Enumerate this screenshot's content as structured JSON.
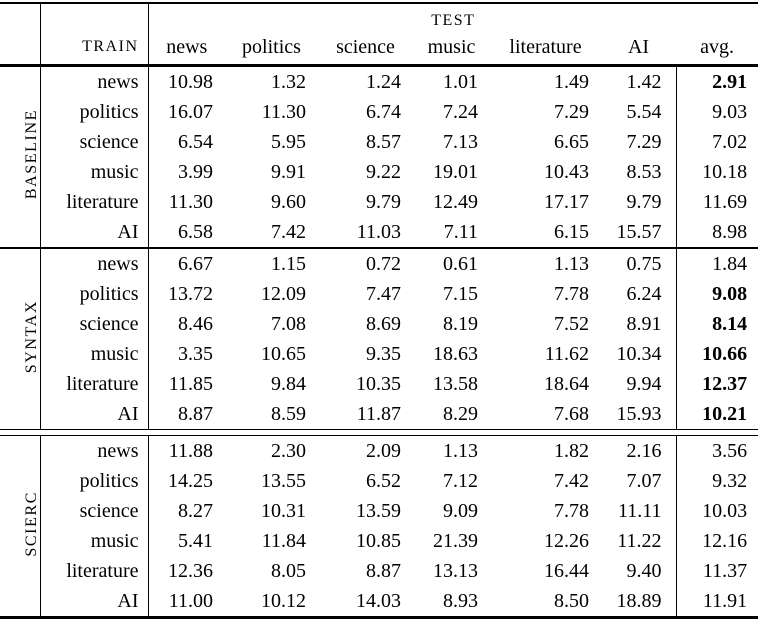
{
  "colors": {
    "text": "#000000",
    "background": "#ffffff",
    "rule": "#000000"
  },
  "table": {
    "test_label": "TEST",
    "train_label": "TRAIN",
    "columns": [
      "news",
      "politics",
      "science",
      "music",
      "literature",
      "AI",
      "avg."
    ],
    "sections": [
      {
        "name": "BASELINE",
        "rows": [
          {
            "train": "news",
            "values": [
              "10.98",
              "1.32",
              "1.24",
              "1.01",
              "1.49",
              "1.42"
            ],
            "avg": "2.91",
            "avg_bold": true
          },
          {
            "train": "politics",
            "values": [
              "16.07",
              "11.30",
              "6.74",
              "7.24",
              "7.29",
              "5.54"
            ],
            "avg": "9.03",
            "avg_bold": false
          },
          {
            "train": "science",
            "values": [
              "6.54",
              "5.95",
              "8.57",
              "7.13",
              "6.65",
              "7.29"
            ],
            "avg": "7.02",
            "avg_bold": false
          },
          {
            "train": "music",
            "values": [
              "3.99",
              "9.91",
              "9.22",
              "19.01",
              "10.43",
              "8.53"
            ],
            "avg": "10.18",
            "avg_bold": false
          },
          {
            "train": "literature",
            "values": [
              "11.30",
              "9.60",
              "9.79",
              "12.49",
              "17.17",
              "9.79"
            ],
            "avg": "11.69",
            "avg_bold": false
          },
          {
            "train": "AI",
            "values": [
              "6.58",
              "7.42",
              "11.03",
              "7.11",
              "6.15",
              "15.57"
            ],
            "avg": "8.98",
            "avg_bold": false
          }
        ]
      },
      {
        "name": "SYNTAX",
        "rows": [
          {
            "train": "news",
            "values": [
              "6.67",
              "1.15",
              "0.72",
              "0.61",
              "1.13",
              "0.75"
            ],
            "avg": "1.84",
            "avg_bold": false
          },
          {
            "train": "politics",
            "values": [
              "13.72",
              "12.09",
              "7.47",
              "7.15",
              "7.78",
              "6.24"
            ],
            "avg": "9.08",
            "avg_bold": true
          },
          {
            "train": "science",
            "values": [
              "8.46",
              "7.08",
              "8.69",
              "8.19",
              "7.52",
              "8.91"
            ],
            "avg": "8.14",
            "avg_bold": true
          },
          {
            "train": "music",
            "values": [
              "3.35",
              "10.65",
              "9.35",
              "18.63",
              "11.62",
              "10.34"
            ],
            "avg": "10.66",
            "avg_bold": true
          },
          {
            "train": "literature",
            "values": [
              "11.85",
              "9.84",
              "10.35",
              "13.58",
              "18.64",
              "9.94"
            ],
            "avg": "12.37",
            "avg_bold": true
          },
          {
            "train": "AI",
            "values": [
              "8.87",
              "8.59",
              "11.87",
              "8.29",
              "7.68",
              "15.93"
            ],
            "avg": "10.21",
            "avg_bold": true
          }
        ]
      },
      {
        "name": "SCIERC",
        "rows": [
          {
            "train": "news",
            "values": [
              "11.88",
              "2.30",
              "2.09",
              "1.13",
              "1.82",
              "2.16"
            ],
            "avg": "3.56",
            "avg_bold": false
          },
          {
            "train": "politics",
            "values": [
              "14.25",
              "13.55",
              "6.52",
              "7.12",
              "7.42",
              "7.07"
            ],
            "avg": "9.32",
            "avg_bold": false
          },
          {
            "train": "science",
            "values": [
              "8.27",
              "10.31",
              "13.59",
              "9.09",
              "7.78",
              "11.11"
            ],
            "avg": "10.03",
            "avg_bold": false
          },
          {
            "train": "music",
            "values": [
              "5.41",
              "11.84",
              "10.85",
              "21.39",
              "12.26",
              "11.22"
            ],
            "avg": "12.16",
            "avg_bold": false
          },
          {
            "train": "literature",
            "values": [
              "12.36",
              "8.05",
              "8.87",
              "13.13",
              "16.44",
              "9.40"
            ],
            "avg": "11.37",
            "avg_bold": false
          },
          {
            "train": "AI",
            "values": [
              "11.00",
              "10.12",
              "14.03",
              "8.93",
              "8.50",
              "18.89"
            ],
            "avg": "11.91",
            "avg_bold": false
          }
        ]
      }
    ]
  }
}
